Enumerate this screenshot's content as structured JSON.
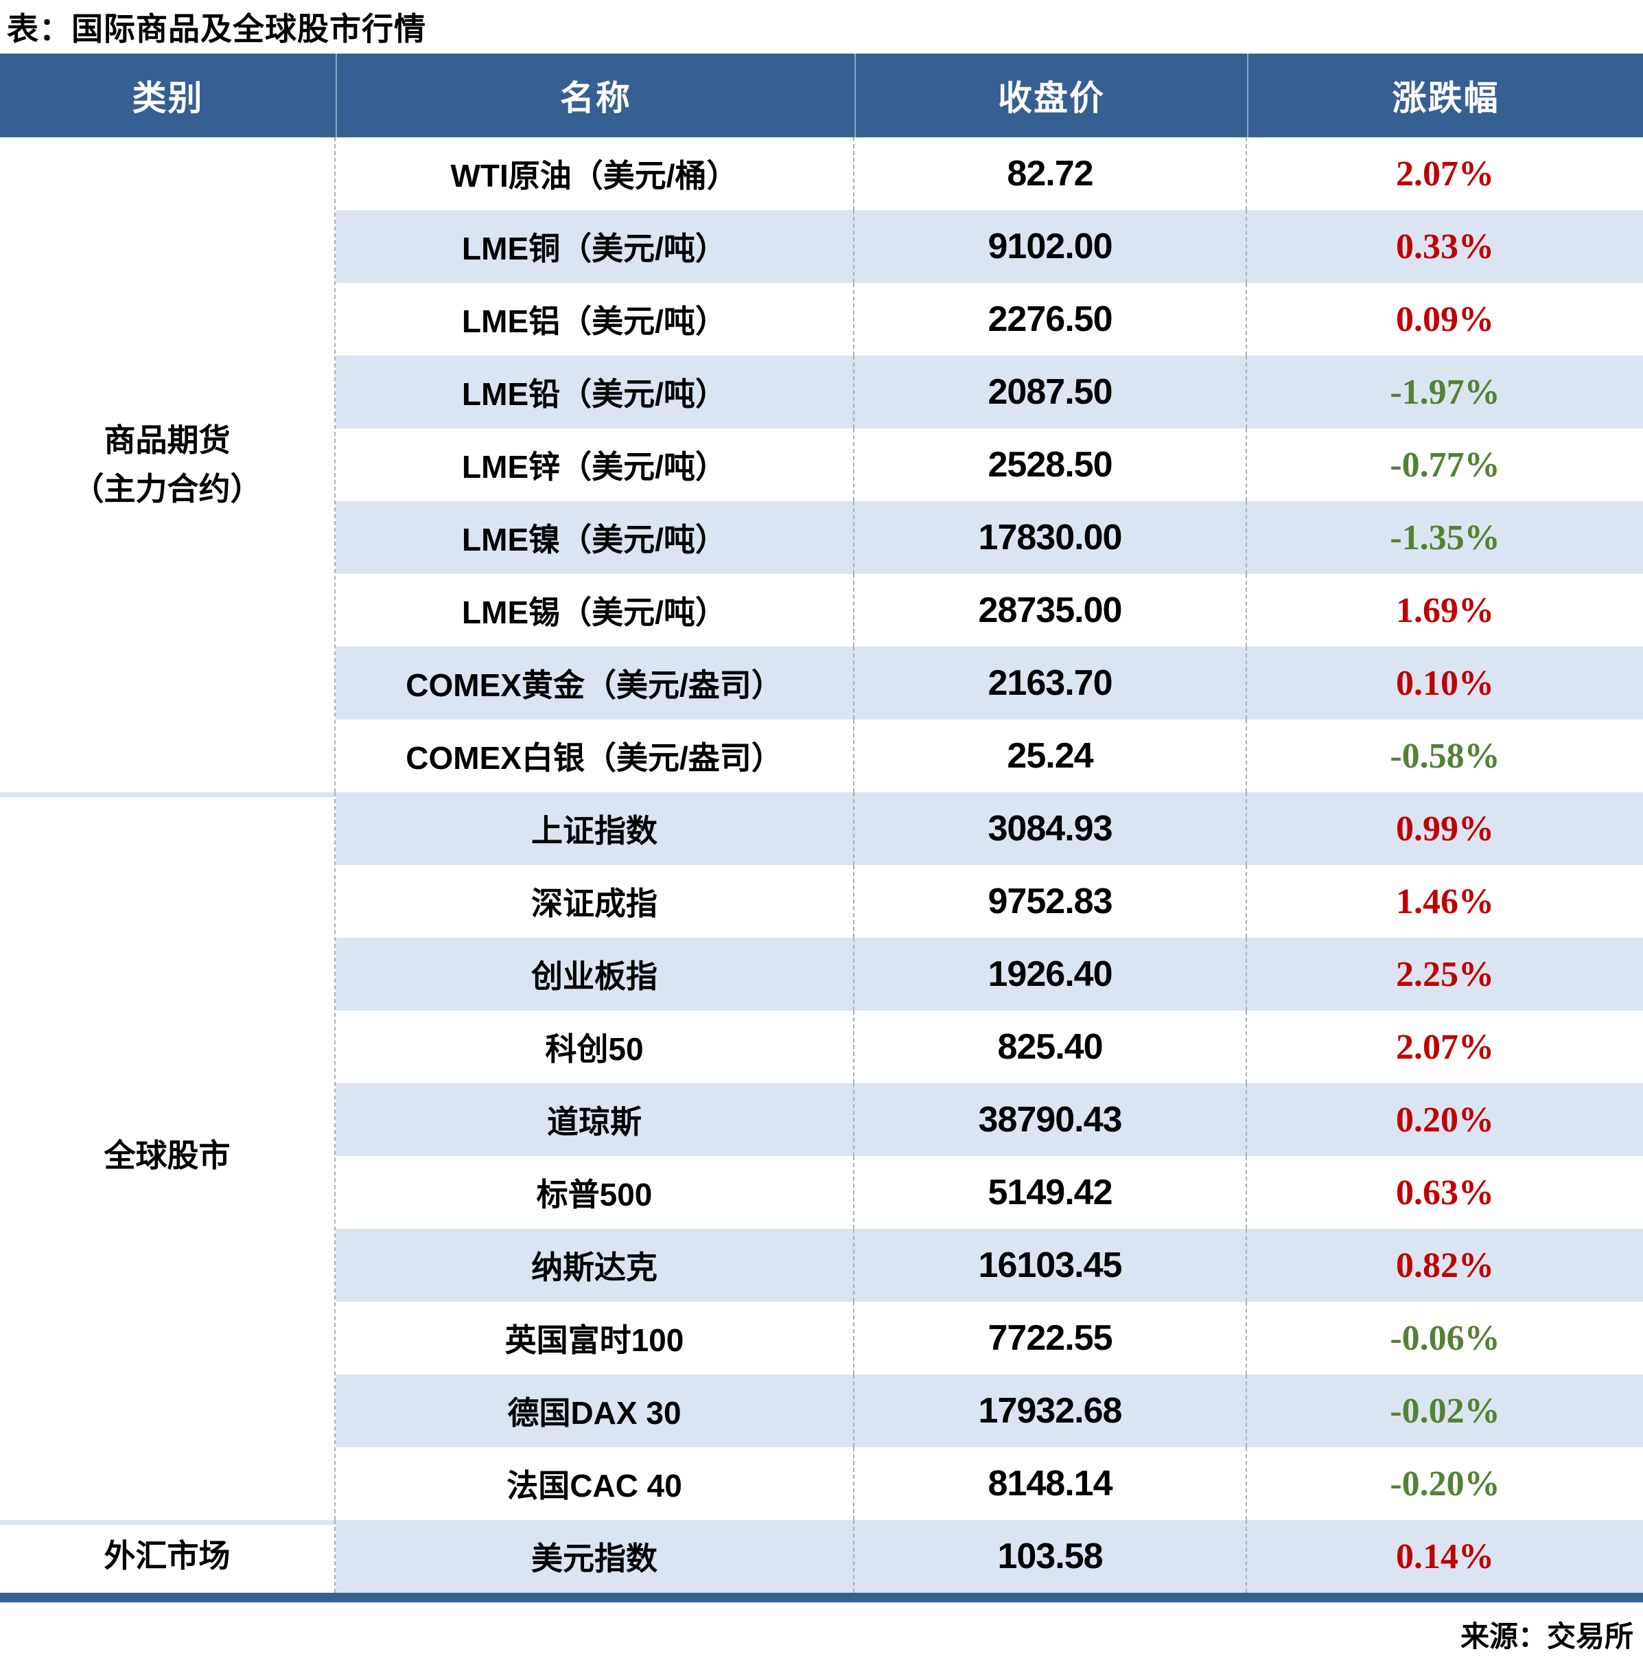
{
  "chart_data": {
    "type": "table",
    "title": "表：国际商品及全球股市行情",
    "columns": [
      "类别",
      "名称",
      "收盘价",
      "涨跌幅"
    ],
    "rows": [
      {
        "category": "商品期货（主力合约）",
        "name": "WTI原油（美元/桶）",
        "close": "82.72",
        "change": "2.07%"
      },
      {
        "category": "商品期货（主力合约）",
        "name": "LME铜（美元/吨）",
        "close": "9102.00",
        "change": "0.33%"
      },
      {
        "category": "商品期货（主力合约）",
        "name": "LME铝（美元/吨）",
        "close": "2276.50",
        "change": "0.09%"
      },
      {
        "category": "商品期货（主力合约）",
        "name": "LME铅（美元/吨）",
        "close": "2087.50",
        "change": "-1.97%"
      },
      {
        "category": "商品期货（主力合约）",
        "name": "LME锌（美元/吨）",
        "close": "2528.50",
        "change": "-0.77%"
      },
      {
        "category": "商品期货（主力合约）",
        "name": "LME镍（美元/吨）",
        "close": "17830.00",
        "change": "-1.35%"
      },
      {
        "category": "商品期货（主力合约）",
        "name": "LME锡（美元/吨）",
        "close": "28735.00",
        "change": "1.69%"
      },
      {
        "category": "商品期货（主力合约）",
        "name": "COMEX黄金（美元/盎司）",
        "close": "2163.70",
        "change": "0.10%"
      },
      {
        "category": "商品期货（主力合约）",
        "name": "COMEX白银（美元/盎司）",
        "close": "25.24",
        "change": "-0.58%"
      },
      {
        "category": "全球股市",
        "name": "上证指数",
        "close": "3084.93",
        "change": "0.99%"
      },
      {
        "category": "全球股市",
        "name": "深证成指",
        "close": "9752.83",
        "change": "1.46%"
      },
      {
        "category": "全球股市",
        "name": "创业板指",
        "close": "1926.40",
        "change": "2.25%"
      },
      {
        "category": "全球股市",
        "name": "科创50",
        "close": "825.40",
        "change": "2.07%"
      },
      {
        "category": "全球股市",
        "name": "道琼斯",
        "close": "38790.43",
        "change": "0.20%"
      },
      {
        "category": "全球股市",
        "name": "标普500",
        "close": "5149.42",
        "change": "0.63%"
      },
      {
        "category": "全球股市",
        "name": "纳斯达克",
        "close": "16103.45",
        "change": "0.82%"
      },
      {
        "category": "全球股市",
        "name": "英国富时100",
        "close": "7722.55",
        "change": "-0.06%"
      },
      {
        "category": "全球股市",
        "name": "德国DAX 30",
        "close": "17932.68",
        "change": "-0.02%"
      },
      {
        "category": "全球股市",
        "name": "法国CAC 40",
        "close": "8148.14",
        "change": "-0.20%"
      },
      {
        "category": "外汇市场",
        "name": "美元指数",
        "close": "103.58",
        "change": "0.14%"
      }
    ],
    "source": "来源：交易所"
  },
  "colors": {
    "header_bg": "#366092",
    "stripe": "#dbe5f1",
    "up": "#c00000",
    "down": "#538135"
  }
}
